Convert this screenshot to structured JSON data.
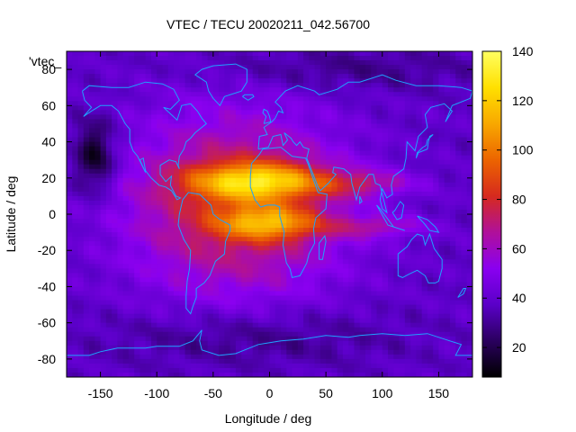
{
  "chart_data": {
    "type": "heatmap",
    "title": "VTEC / TECU 20020211_042.56700",
    "xlabel": "Longitude / deg",
    "ylabel": "Latitude / deg",
    "series_label": "'vtec_",
    "xlim": [
      -180,
      180
    ],
    "ylim": [
      -90,
      90
    ],
    "xticks": [
      -150,
      -100,
      -50,
      0,
      50,
      100,
      150
    ],
    "yticks": [
      -80,
      -60,
      -40,
      -20,
      0,
      20,
      40,
      60,
      80
    ],
    "colorbar": {
      "min": 8,
      "max": 140,
      "ticks": [
        20,
        40,
        60,
        80,
        100,
        120,
        140
      ],
      "palette": [
        "#000000",
        "#2a005e",
        "#5a00c8",
        "#8a00f0",
        "#b0109a",
        "#d62a1e",
        "#ec6400",
        "#f8a800",
        "#ffe000",
        "#ffff60"
      ]
    },
    "grid": false,
    "overlay": "coastlines",
    "features": [
      {
        "name": "equatorial-anomaly-north-crest",
        "lon": -10,
        "lat": 18,
        "peak_tecu": 138
      },
      {
        "name": "equatorial-anomaly-south-crest",
        "lon": 0,
        "lat": -5,
        "peak_tecu": 130
      },
      {
        "name": "dayside-plateau",
        "lon": -30,
        "lat": 5,
        "level_tecu": 80
      },
      {
        "name": "nightside-minimum",
        "lon": -155,
        "lat": 32,
        "level_tecu": 10
      }
    ]
  },
  "colors": {
    "coastline": "#1fa2ff",
    "axis": "#000000",
    "background": "#ffffff"
  }
}
